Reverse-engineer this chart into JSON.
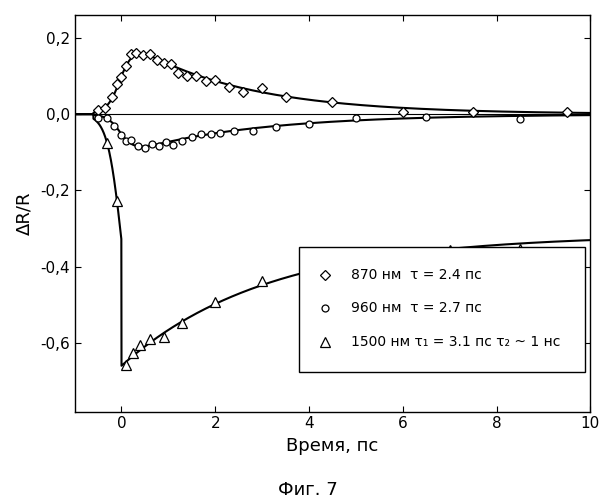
{
  "title": "Фиг. 7",
  "xlabel": "Время, пс",
  "ylabel": "ΔR/R",
  "xlim": [
    -1,
    10
  ],
  "ylim": [
    -0.78,
    0.26
  ],
  "yticks": [
    -0.6,
    -0.4,
    -0.2,
    0.0,
    0.2
  ],
  "ytick_labels": [
    "-0,6",
    "-0,4",
    "-0,2",
    "0,0",
    "0,2"
  ],
  "xticks": [
    0,
    2,
    4,
    6,
    8,
    10
  ],
  "background_color": "#ffffff",
  "peak1": 0.2,
  "tau1": 2.4,
  "peak2": -0.105,
  "tau2": 2.7,
  "peak3": -0.66,
  "A3": -0.34,
  "B3": -0.32,
  "tau3a": 3.1,
  "tau3b": 1000.0,
  "rise_sigma": 0.18,
  "legend_entries": [
    {
      "marker": "D",
      "text": "870 нм  τ = 2.4 пс"
    },
    {
      "marker": "o",
      "text": "960 нм  τ = 2.7 пс"
    },
    {
      "marker": "^",
      "text": "1500 нм τ₁ = 3.1 пс τ₂ ~ 1 нс"
    }
  ],
  "t870_pts": [
    -0.5,
    -0.35,
    -0.2,
    -0.1,
    0.0,
    0.1,
    0.2,
    0.3,
    0.45,
    0.6,
    0.75,
    0.9,
    1.05,
    1.2,
    1.4,
    1.6,
    1.8,
    2.0,
    2.3,
    2.6,
    3.0,
    3.5,
    4.5,
    6.0,
    7.5,
    9.5
  ],
  "t960_pts": [
    -0.5,
    -0.3,
    -0.15,
    0.0,
    0.1,
    0.2,
    0.35,
    0.5,
    0.65,
    0.8,
    0.95,
    1.1,
    1.3,
    1.5,
    1.7,
    1.9,
    2.1,
    2.4,
    2.8,
    3.3,
    4.0,
    5.0,
    6.5,
    8.5
  ],
  "t1500_pts": [
    -0.3,
    -0.1,
    0.1,
    0.25,
    0.4,
    0.6,
    0.9,
    1.3,
    2.0,
    3.0,
    5.0,
    7.0,
    8.5
  ]
}
